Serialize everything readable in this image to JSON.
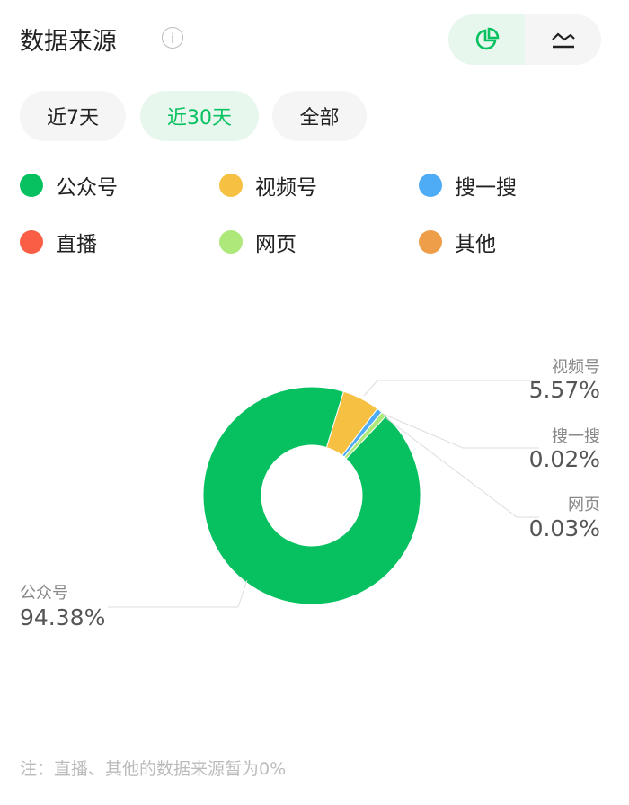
{
  "header": {
    "title": "数据来源",
    "info_icon": "info-icon",
    "toggle": [
      {
        "icon": "pie-chart-icon",
        "active": true
      },
      {
        "icon": "line-chart-icon",
        "active": false
      }
    ]
  },
  "filters": [
    {
      "label": "近7天",
      "active": false
    },
    {
      "label": "近30天",
      "active": true
    },
    {
      "label": "全部",
      "active": false
    }
  ],
  "legend": [
    {
      "name": "公众号",
      "color": "#07c160"
    },
    {
      "name": "视频号",
      "color": "#f6c142"
    },
    {
      "name": "搜一搜",
      "color": "#4eabf5"
    },
    {
      "name": "直播",
      "color": "#fa5f46"
    },
    {
      "name": "网页",
      "color": "#aee87a"
    },
    {
      "name": "其他",
      "color": "#ee9e49"
    }
  ],
  "chart_data": {
    "type": "pie",
    "donut": true,
    "series": [
      {
        "name": "公众号",
        "value": 94.38,
        "label": "94.38%"
      },
      {
        "name": "视频号",
        "value": 5.57,
        "label": "5.57%"
      },
      {
        "name": "搜一搜",
        "value": 0.02,
        "label": "0.02%"
      },
      {
        "name": "网页",
        "value": 0.03,
        "label": "0.03%"
      }
    ]
  },
  "note": "注：直播、其他的数据来源暂为0%"
}
